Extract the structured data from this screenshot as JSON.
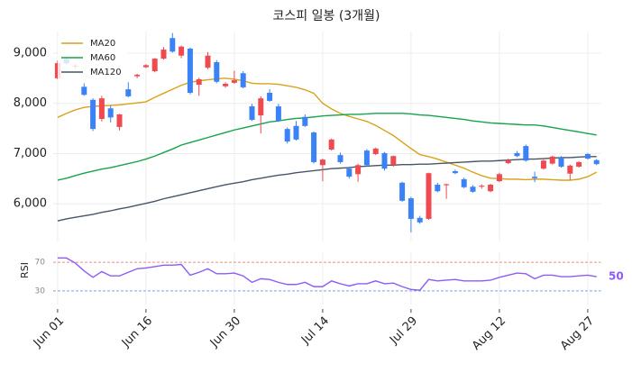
{
  "chart_data": [
    {
      "type": "candlestick",
      "title": "코스피 일봉 (3개월)",
      "categories": [
        "Jun 01",
        null,
        null,
        null,
        null,
        null,
        null,
        null,
        null,
        null,
        "Jun 16",
        null,
        null,
        null,
        null,
        null,
        null,
        null,
        null,
        null,
        "Jun 30",
        null,
        null,
        null,
        null,
        null,
        null,
        null,
        null,
        null,
        "Jul 14",
        null,
        null,
        null,
        null,
        null,
        null,
        null,
        null,
        null,
        "Jul 29",
        null,
        null,
        null,
        null,
        null,
        null,
        null,
        null,
        null,
        "Aug 12",
        null,
        null,
        null,
        null,
        null,
        null,
        null,
        null,
        null,
        "Aug 27",
        null
      ],
      "open": [
        8500,
        8880,
        8730,
        8330,
        8070,
        7690,
        7900,
        7530,
        8280,
        8540,
        8720,
        8640,
        8890,
        9300,
        8950,
        9090,
        8370,
        8710,
        8820,
        8340,
        8410,
        8600,
        7940,
        7760,
        8210,
        7940,
        7490,
        7550,
        7730,
        7420,
        6770,
        7080,
        6970,
        6700,
        6590,
        7060,
        6990,
        7010,
        6770,
        6420,
        6110,
        5720,
        5700,
        6380,
        6370,
        6650,
        6490,
        6340,
        6340,
        6250,
        6450,
        6810,
        7010,
        7150,
        6540,
        6700,
        6800,
        6920,
        6600,
        6740,
        6990,
        6870
      ],
      "high": [
        8850,
        8930,
        8780,
        8400,
        8100,
        8150,
        7960,
        7790,
        8420,
        8590,
        8780,
        8900,
        9120,
        9400,
        9150,
        9110,
        8510,
        9020,
        8860,
        8420,
        8650,
        8640,
        7990,
        8140,
        8280,
        7990,
        7520,
        7650,
        7780,
        7440,
        6900,
        7300,
        7020,
        6740,
        6800,
        7090,
        7120,
        7030,
        6960,
        6440,
        6140,
        5760,
        6620,
        6420,
        6400,
        6680,
        6520,
        6370,
        6390,
        6400,
        6620,
        6900,
        7050,
        7180,
        6640,
        6880,
        6960,
        6950,
        6780,
        6850,
        7010,
        6890
      ],
      "low": [
        8480,
        8760,
        8700,
        8150,
        7450,
        7640,
        7620,
        7460,
        8120,
        8500,
        8700,
        8620,
        8870,
        9010,
        8900,
        8180,
        8150,
        8680,
        8400,
        8310,
        8390,
        8300,
        7650,
        7400,
        8030,
        7630,
        7200,
        7260,
        7530,
        6800,
        6450,
        7060,
        6800,
        6500,
        6440,
        6750,
        6970,
        6660,
        6740,
        6040,
        5430,
        5600,
        5680,
        6230,
        6100,
        6590,
        6310,
        6220,
        6300,
        6230,
        6430,
        6790,
        6930,
        6840,
        6430,
        6680,
        6780,
        6720,
        6470,
        6720,
        6880,
        6770
      ],
      "close": [
        8800,
        8800,
        8750,
        8170,
        7490,
        8100,
        7720,
        7780,
        8140,
        8570,
        8760,
        8890,
        9070,
        9030,
        9130,
        8210,
        8480,
        8950,
        8430,
        8390,
        8460,
        8320,
        7670,
        8100,
        8050,
        7650,
        7240,
        7280,
        7550,
        6830,
        6880,
        7280,
        6830,
        6540,
        6770,
        6770,
        7100,
        6700,
        6950,
        6060,
        5700,
        5630,
        6610,
        6250,
        6390,
        6610,
        6330,
        6240,
        6360,
        6380,
        6590,
        6870,
        6950,
        6860,
        6510,
        6860,
        6940,
        6740,
        6760,
        6830,
        6900,
        6790
      ],
      "up_color": "#ef4a50",
      "down_color": "#3b82f6",
      "series": [
        {
          "name": "MA20",
          "color": "#d9a21b",
          "values": [
            7720,
            7800,
            7870,
            7920,
            7940,
            7950,
            7960,
            7970,
            7990,
            8010,
            8030,
            8120,
            8200,
            8280,
            8360,
            8420,
            8450,
            8470,
            8490,
            8500,
            8480,
            8450,
            8400,
            8390,
            8390,
            8380,
            8350,
            8320,
            8270,
            8200,
            8000,
            7890,
            7800,
            7740,
            7690,
            7640,
            7560,
            7460,
            7360,
            7230,
            7100,
            6980,
            6940,
            6890,
            6830,
            6770,
            6710,
            6630,
            6560,
            6510,
            6500,
            6490,
            6490,
            6480,
            6490,
            6490,
            6480,
            6470,
            6470,
            6490,
            6540,
            6630
          ]
        },
        {
          "name": "MA60",
          "color": "#16a34a",
          "values": [
            6470,
            6510,
            6560,
            6610,
            6650,
            6690,
            6720,
            6760,
            6800,
            6840,
            6890,
            6950,
            7020,
            7090,
            7170,
            7220,
            7270,
            7320,
            7370,
            7420,
            7470,
            7510,
            7550,
            7590,
            7630,
            7650,
            7680,
            7700,
            7710,
            7730,
            7750,
            7760,
            7770,
            7780,
            7780,
            7790,
            7800,
            7800,
            7800,
            7800,
            7790,
            7770,
            7760,
            7740,
            7720,
            7700,
            7680,
            7650,
            7630,
            7610,
            7600,
            7590,
            7580,
            7570,
            7570,
            7550,
            7520,
            7490,
            7460,
            7430,
            7400,
            7370
          ]
        },
        {
          "name": "MA120",
          "color": "#475569",
          "values": [
            5660,
            5700,
            5730,
            5760,
            5790,
            5830,
            5860,
            5900,
            5930,
            5970,
            6010,
            6050,
            6100,
            6140,
            6180,
            6220,
            6260,
            6300,
            6340,
            6380,
            6410,
            6440,
            6480,
            6510,
            6540,
            6570,
            6590,
            6620,
            6640,
            6660,
            6680,
            6700,
            6710,
            6720,
            6740,
            6750,
            6760,
            6770,
            6770,
            6780,
            6780,
            6790,
            6790,
            6800,
            6810,
            6820,
            6830,
            6840,
            6850,
            6850,
            6860,
            6870,
            6880,
            6890,
            6890,
            6900,
            6910,
            6920,
            6920,
            6930,
            6940,
            6940
          ]
        }
      ],
      "ylim": [
        5250,
        9430
      ],
      "yticks": [
        {
          "value": 6000,
          "label": "6,000"
        },
        {
          "value": 7000,
          "label": "7,000"
        },
        {
          "value": 8000,
          "label": "8,000"
        },
        {
          "value": 9000,
          "label": "9,000"
        }
      ],
      "grid": true,
      "legend": "upper-left"
    },
    {
      "type": "line",
      "ylabel": "RSI",
      "color": "#8b5cf6",
      "values": [
        76,
        76,
        69,
        58,
        49,
        57,
        51,
        51,
        56,
        61,
        62,
        64,
        66,
        66,
        67,
        52,
        56,
        61,
        54,
        54,
        55,
        51,
        42,
        47,
        46,
        42,
        39,
        39,
        42,
        36,
        36,
        44,
        40,
        37,
        40,
        40,
        44,
        40,
        41,
        36,
        32,
        31,
        46,
        44,
        45,
        46,
        44,
        44,
        44,
        45,
        49,
        52,
        55,
        54,
        47,
        52,
        52,
        50,
        50,
        51,
        52,
        50
      ],
      "ylim": [
        11,
        84
      ],
      "yticks": [
        30,
        70
      ],
      "ytick_colors": [
        "#7aa3e8",
        "#ef8a8a"
      ],
      "last_value_label": true
    }
  ]
}
